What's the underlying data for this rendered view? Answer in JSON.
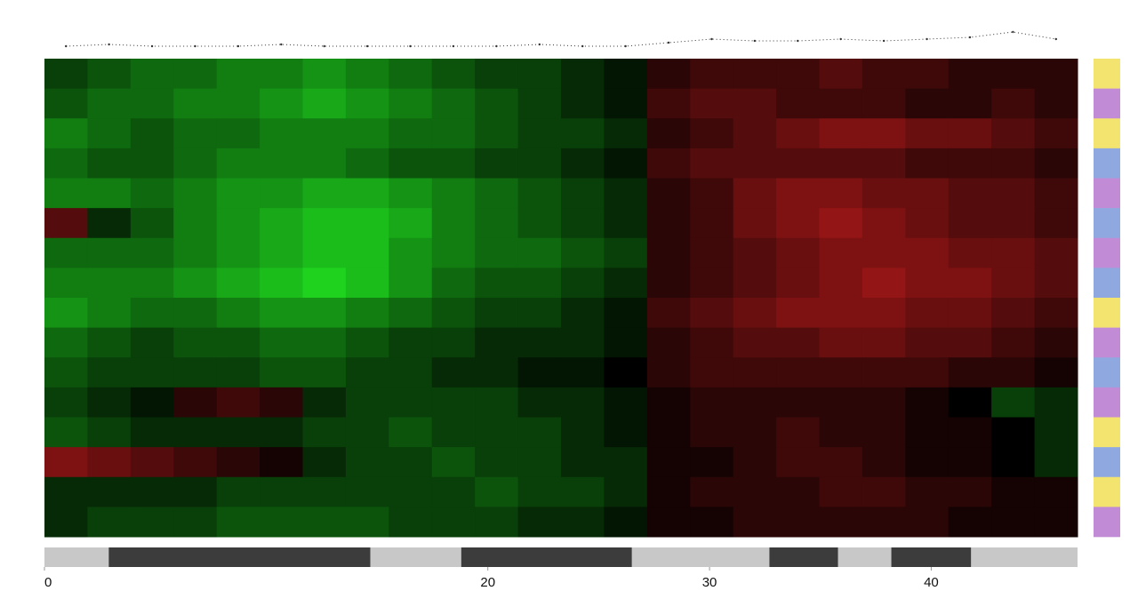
{
  "chart_data": {
    "type": "heatmap",
    "xlim": [
      0,
      46.6
    ],
    "xticks": [
      0,
      20,
      30,
      40
    ],
    "zlim": [
      -1,
      1
    ],
    "colormap": {
      "low": "#1ed21e",
      "mid": "#000000",
      "high": "#d21e1e"
    },
    "matrix": [
      [
        -0.3,
        -0.4,
        -0.5,
        -0.5,
        -0.6,
        -0.6,
        -0.7,
        -0.6,
        -0.5,
        -0.4,
        -0.3,
        -0.3,
        -0.2,
        -0.1,
        0.2,
        0.3,
        0.3,
        0.3,
        0.4,
        0.3,
        0.3,
        0.2,
        0.2,
        0.2
      ],
      [
        -0.4,
        -0.5,
        -0.5,
        -0.6,
        -0.6,
        -0.7,
        -0.8,
        -0.7,
        -0.6,
        -0.5,
        -0.4,
        -0.3,
        -0.2,
        -0.1,
        0.3,
        0.4,
        0.4,
        0.3,
        0.3,
        0.3,
        0.2,
        0.2,
        0.3,
        0.2
      ],
      [
        -0.6,
        -0.5,
        -0.4,
        -0.5,
        -0.5,
        -0.6,
        -0.6,
        -0.6,
        -0.5,
        -0.5,
        -0.4,
        -0.3,
        -0.3,
        -0.2,
        0.2,
        0.3,
        0.4,
        0.5,
        0.6,
        0.6,
        0.5,
        0.5,
        0.4,
        0.3
      ],
      [
        -0.5,
        -0.4,
        -0.4,
        -0.5,
        -0.6,
        -0.6,
        -0.6,
        -0.5,
        -0.4,
        -0.4,
        -0.3,
        -0.3,
        -0.2,
        -0.1,
        0.3,
        0.4,
        0.4,
        0.4,
        0.4,
        0.4,
        0.3,
        0.3,
        0.3,
        0.2
      ],
      [
        -0.6,
        -0.6,
        -0.5,
        -0.6,
        -0.7,
        -0.7,
        -0.8,
        -0.8,
        -0.7,
        -0.6,
        -0.5,
        -0.4,
        -0.3,
        -0.2,
        0.2,
        0.3,
        0.5,
        0.6,
        0.6,
        0.5,
        0.5,
        0.4,
        0.4,
        0.3
      ],
      [
        0.4,
        -0.2,
        -0.4,
        -0.6,
        -0.7,
        -0.8,
        -0.9,
        -0.9,
        -0.8,
        -0.6,
        -0.5,
        -0.4,
        -0.3,
        -0.2,
        0.2,
        0.3,
        0.5,
        0.6,
        0.7,
        0.6,
        0.5,
        0.4,
        0.4,
        0.3
      ],
      [
        -0.5,
        -0.5,
        -0.5,
        -0.6,
        -0.7,
        -0.8,
        -0.9,
        -0.9,
        -0.7,
        -0.6,
        -0.5,
        -0.5,
        -0.4,
        -0.3,
        0.2,
        0.3,
        0.4,
        0.5,
        0.6,
        0.6,
        0.6,
        0.5,
        0.5,
        0.4
      ],
      [
        -0.6,
        -0.6,
        -0.6,
        -0.7,
        -0.8,
        -0.9,
        -1.0,
        -0.9,
        -0.7,
        -0.5,
        -0.4,
        -0.4,
        -0.3,
        -0.2,
        0.2,
        0.3,
        0.4,
        0.5,
        0.6,
        0.7,
        0.6,
        0.6,
        0.5,
        0.4
      ],
      [
        -0.7,
        -0.6,
        -0.5,
        -0.5,
        -0.6,
        -0.7,
        -0.7,
        -0.6,
        -0.5,
        -0.4,
        -0.3,
        -0.3,
        -0.2,
        -0.1,
        0.3,
        0.4,
        0.5,
        0.6,
        0.6,
        0.6,
        0.5,
        0.5,
        0.4,
        0.3
      ],
      [
        -0.5,
        -0.4,
        -0.3,
        -0.4,
        -0.4,
        -0.5,
        -0.5,
        -0.4,
        -0.3,
        -0.3,
        -0.2,
        -0.2,
        -0.2,
        -0.1,
        0.2,
        0.3,
        0.4,
        0.4,
        0.5,
        0.5,
        0.4,
        0.4,
        0.3,
        0.2
      ],
      [
        -0.4,
        -0.3,
        -0.3,
        -0.3,
        -0.3,
        -0.4,
        -0.4,
        -0.3,
        -0.3,
        -0.2,
        -0.2,
        -0.1,
        -0.1,
        0.0,
        0.2,
        0.3,
        0.3,
        0.3,
        0.3,
        0.3,
        0.3,
        0.2,
        0.2,
        0.1
      ],
      [
        -0.3,
        -0.2,
        -0.1,
        0.2,
        0.3,
        0.2,
        -0.2,
        -0.3,
        -0.3,
        -0.3,
        -0.3,
        -0.2,
        -0.2,
        -0.1,
        0.1,
        0.2,
        0.2,
        0.2,
        0.2,
        0.2,
        0.1,
        0.0,
        -0.3,
        -0.2
      ],
      [
        -0.4,
        -0.3,
        -0.2,
        -0.2,
        -0.2,
        -0.2,
        -0.3,
        -0.3,
        -0.4,
        -0.3,
        -0.3,
        -0.3,
        -0.2,
        -0.1,
        0.1,
        0.2,
        0.2,
        0.3,
        0.2,
        0.2,
        0.1,
        0.1,
        0.0,
        -0.2
      ],
      [
        0.6,
        0.5,
        0.4,
        0.3,
        0.2,
        0.1,
        -0.2,
        -0.3,
        -0.3,
        -0.4,
        -0.3,
        -0.3,
        -0.2,
        -0.2,
        0.1,
        0.1,
        0.2,
        0.3,
        0.3,
        0.2,
        0.1,
        0.1,
        0.0,
        -0.2
      ],
      [
        -0.2,
        -0.2,
        -0.2,
        -0.2,
        -0.3,
        -0.3,
        -0.3,
        -0.3,
        -0.3,
        -0.3,
        -0.4,
        -0.3,
        -0.3,
        -0.2,
        0.1,
        0.2,
        0.2,
        0.2,
        0.3,
        0.3,
        0.2,
        0.2,
        0.1,
        0.1
      ],
      [
        -0.2,
        -0.3,
        -0.3,
        -0.3,
        -0.4,
        -0.4,
        -0.4,
        -0.4,
        -0.3,
        -0.3,
        -0.3,
        -0.2,
        -0.2,
        -0.1,
        0.1,
        0.1,
        0.2,
        0.2,
        0.2,
        0.2,
        0.2,
        0.1,
        0.1,
        0.1
      ]
    ],
    "row_colors": [
      "#f2e46e",
      "#c28bd6",
      "#f2e46e",
      "#8fa9e0",
      "#c28bd6",
      "#8fa9e0",
      "#c28bd6",
      "#8fa9e0",
      "#f2e46e",
      "#c28bd6",
      "#8fa9e0",
      "#c28bd6",
      "#f2e46e",
      "#8fa9e0",
      "#f2e46e",
      "#c28bd6"
    ],
    "profile": {
      "ylim": [
        0,
        1
      ],
      "color": "#333333",
      "values": [
        0.2,
        0.25,
        0.2,
        0.2,
        0.2,
        0.25,
        0.2,
        0.2,
        0.2,
        0.2,
        0.2,
        0.25,
        0.2,
        0.2,
        0.3,
        0.4,
        0.35,
        0.35,
        0.4,
        0.35,
        0.4,
        0.45,
        0.6,
        0.4
      ]
    },
    "segments": {
      "bounds": [
        0,
        2.9,
        14.7,
        18.8,
        26.5,
        32.7,
        35.8,
        38.2,
        41.8,
        46.6
      ],
      "colors": [
        "#c8c8c8",
        "#3c3c3c",
        "#c8c8c8",
        "#3c3c3c",
        "#c8c8c8",
        "#3c3c3c",
        "#c8c8c8",
        "#3c3c3c",
        "#c8c8c8"
      ]
    }
  }
}
